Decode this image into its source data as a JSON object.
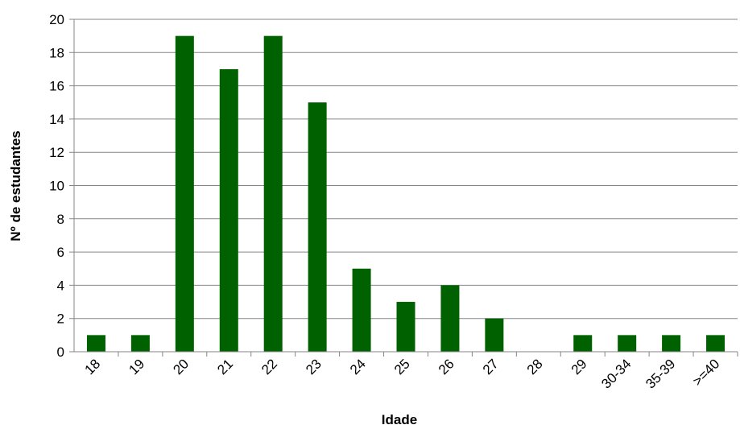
{
  "chart_data": {
    "type": "bar",
    "title": "",
    "xlabel": "Idade",
    "ylabel": "Nº de estudantes",
    "categories": [
      "18",
      "19",
      "20",
      "21",
      "22",
      "23",
      "24",
      "25",
      "26",
      "27",
      "28",
      "29",
      "30-34",
      "35-39",
      ">=40"
    ],
    "values": [
      1,
      1,
      19,
      17,
      19,
      15,
      5,
      3,
      4,
      2,
      0,
      1,
      1,
      1,
      1
    ],
    "ylim": [
      0,
      20
    ],
    "yticks": [
      0,
      2,
      4,
      6,
      8,
      10,
      12,
      14,
      16,
      18,
      20
    ],
    "grid": true,
    "legend": "none",
    "bar_color": "#006100"
  }
}
